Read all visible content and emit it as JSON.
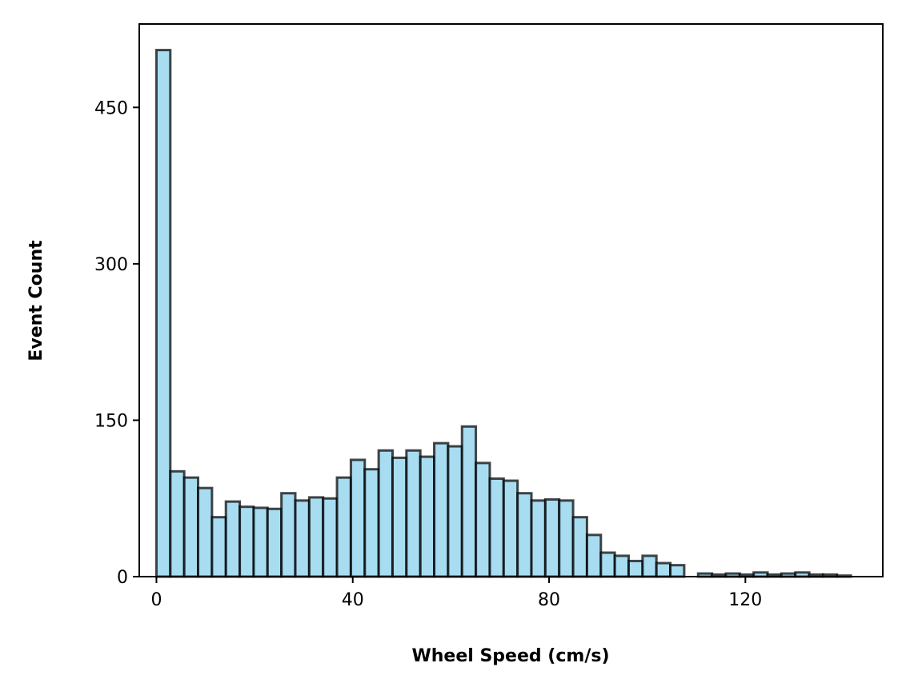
{
  "chart_data": {
    "type": "bar",
    "title": "",
    "xlabel": "Wheel Speed (cm/s)",
    "ylabel": "Event Count",
    "bin_width": 2.83,
    "x_start": 0,
    "values": [
      505,
      101,
      95,
      85,
      57,
      72,
      67,
      66,
      65,
      80,
      73,
      76,
      75,
      95,
      112,
      103,
      121,
      114,
      121,
      115,
      128,
      125,
      144,
      109,
      94,
      92,
      80,
      73,
      74,
      73,
      57,
      40,
      23,
      20,
      15,
      20,
      13,
      11,
      0,
      3,
      2,
      3,
      2,
      4,
      2,
      3,
      4,
      2,
      2,
      1
    ],
    "xlim": [
      -3.5,
      148
    ],
    "ylim": [
      0,
      530
    ],
    "xticks": [
      0,
      40,
      80,
      120
    ],
    "yticks": [
      0,
      150,
      300,
      450
    ],
    "bar_color": "#87CEEB",
    "edge_color": "#000000",
    "grid": false
  }
}
